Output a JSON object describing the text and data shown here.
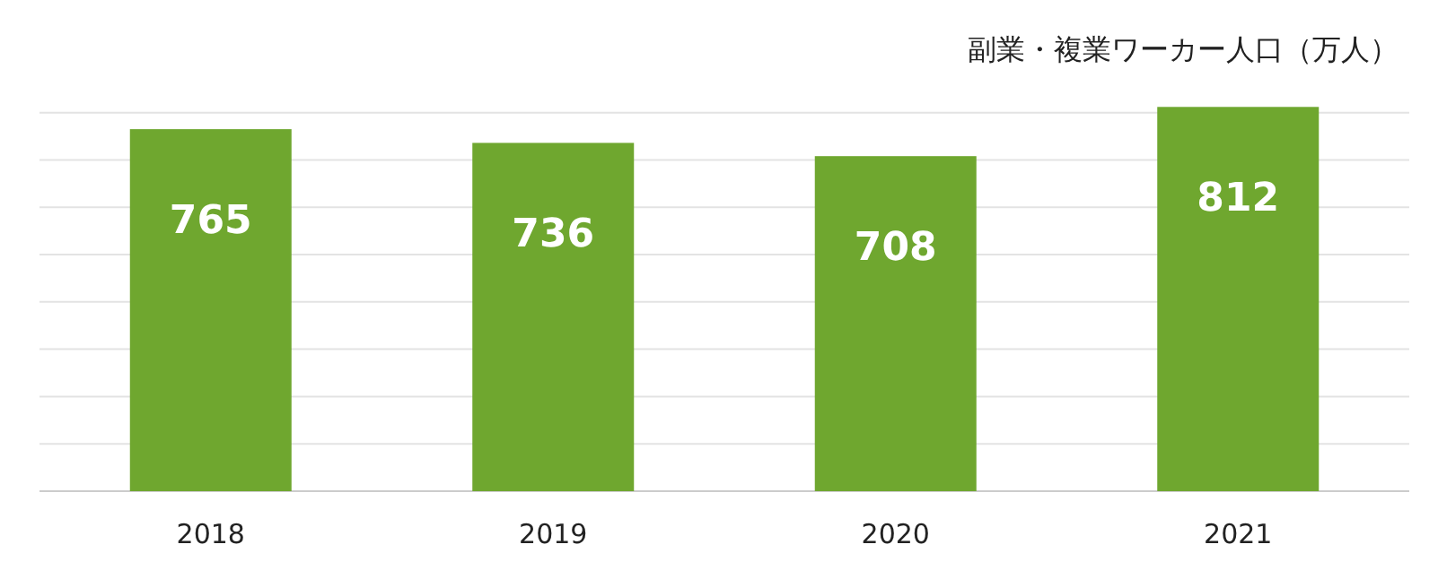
{
  "chart_data": {
    "type": "bar",
    "ylabel": "副業・複業ワーカー人口（万人）",
    "categories": [
      "2018",
      "2019",
      "2020",
      "2021"
    ],
    "values": [
      765,
      736,
      708,
      812
    ],
    "color": "#6fa72f",
    "data_labels": true,
    "grid": "y",
    "yticks": [
      {
        "value": 0,
        "label": null
      },
      {
        "value": 100,
        "label": null
      },
      {
        "value": 200,
        "label": null
      },
      {
        "value": 300,
        "label": null
      },
      {
        "value": 400,
        "label": null
      },
      {
        "value": 500,
        "label": null
      },
      {
        "value": 600,
        "label": null
      },
      {
        "value": 700,
        "label": null
      },
      {
        "value": 800,
        "label": null
      }
    ],
    "tick_labels": "x"
  }
}
